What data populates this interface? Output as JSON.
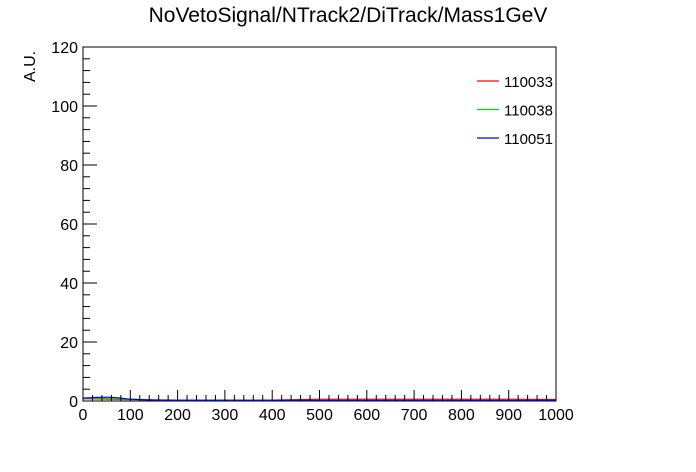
{
  "chart_data": {
    "type": "line",
    "title": "NoVetoSignal/NTrack2/DiTrack/Mass1GeV",
    "xlabel": "",
    "ylabel": "A.U.",
    "xlim": [
      0,
      1000
    ],
    "ylim": [
      0,
      120
    ],
    "x_ticks": [
      0,
      100,
      200,
      300,
      400,
      500,
      600,
      700,
      800,
      900,
      1000
    ],
    "y_ticks": [
      0,
      20,
      40,
      60,
      80,
      100,
      120
    ],
    "grid": false,
    "legend_placement": "top-right",
    "series": [
      {
        "name": "110033",
        "color": "#ff0000",
        "x": [
          0,
          50,
          100,
          150,
          200,
          300,
          400,
          500,
          600,
          700,
          800,
          900,
          1000
        ],
        "y": [
          0.8,
          0.6,
          0.5,
          0.4,
          0.3,
          0.3,
          0.3,
          0.6,
          0.6,
          0.6,
          0.6,
          0.6,
          0.5
        ]
      },
      {
        "name": "110038",
        "color": "#00dd00",
        "x": [
          0,
          50,
          100,
          150,
          170
        ],
        "y": [
          0.9,
          0.8,
          0.6,
          0.4,
          0.3
        ]
      },
      {
        "name": "110051",
        "color": "#0000ff",
        "x": [
          0,
          25,
          50,
          75,
          100,
          150,
          200,
          300,
          400,
          500,
          600,
          700,
          800,
          900,
          1000
        ],
        "y": [
          1.0,
          1.2,
          1.3,
          1.1,
          0.6,
          0.3,
          0.2,
          0.2,
          0.2,
          0.2,
          0.2,
          0.2,
          0.2,
          0.2,
          0.2
        ]
      }
    ]
  }
}
